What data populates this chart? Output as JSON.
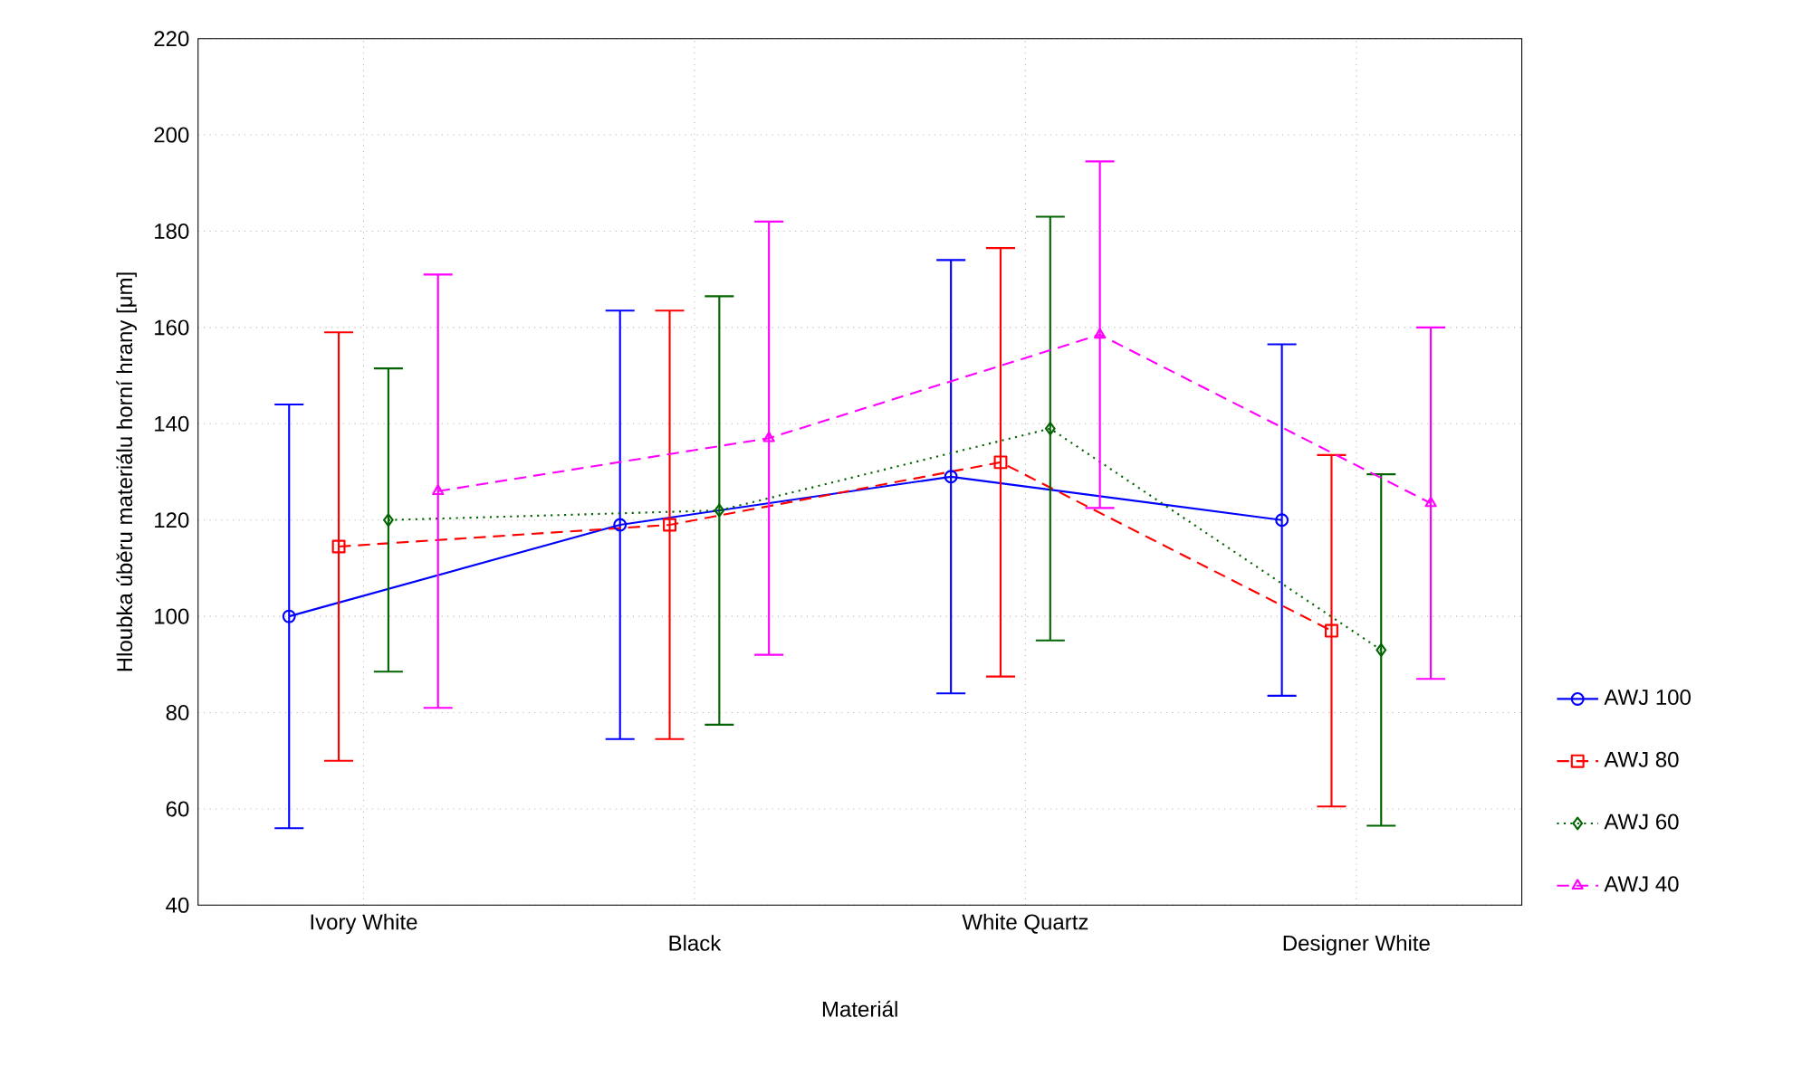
{
  "chart_data": {
    "type": "line",
    "xlabel": "Materiál",
    "ylabel": "Hloubka úběru materiálu horní hrany [μm]",
    "categories": [
      "Ivory White",
      "Black",
      "White Quartz",
      "Designer White"
    ],
    "ylim": [
      40,
      220
    ],
    "yticks": [
      40,
      60,
      80,
      100,
      120,
      140,
      160,
      180,
      200,
      220
    ],
    "grid": true,
    "legend": "bottom right",
    "series": [
      {
        "name": "AWJ 100",
        "color": "#0000ff",
        "marker": "circle",
        "line_style": "solid",
        "values": [
          100,
          119,
          129,
          120
        ],
        "errors": [
          44,
          44.5,
          45,
          36.5
        ]
      },
      {
        "name": "AWJ 80",
        "color": "#ff0000",
        "marker": "square",
        "line_style": "dashed",
        "values": [
          114.5,
          119,
          132,
          97
        ],
        "errors": [
          44.5,
          44.5,
          44.5,
          36.5
        ]
      },
      {
        "name": "AWJ 60",
        "color": "#006400",
        "marker": "diamond",
        "line_style": "dotted",
        "values": [
          120,
          122,
          139,
          93
        ],
        "errors": [
          31.5,
          44.5,
          44,
          36.5
        ]
      },
      {
        "name": "AWJ 40",
        "color": "#ff00ff",
        "marker": "triangle",
        "line_style": "dashed",
        "values": [
          126,
          137,
          158.5,
          123.5
        ],
        "errors": [
          45,
          45,
          36,
          36.5
        ]
      }
    ]
  }
}
